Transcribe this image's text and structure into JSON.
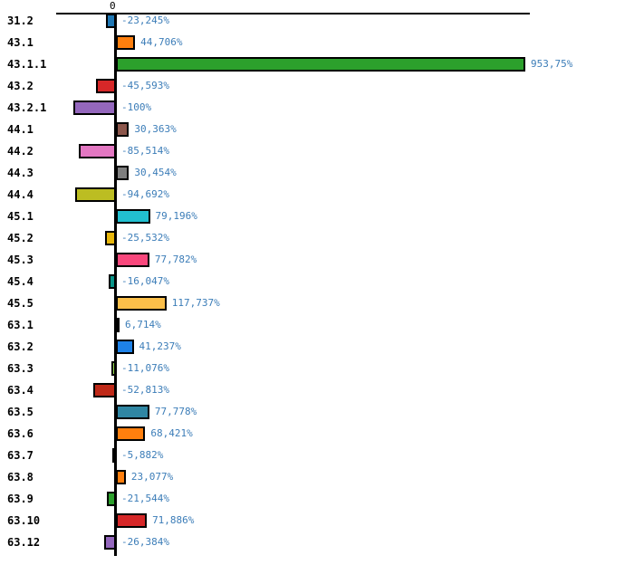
{
  "chart_data": {
    "type": "bar",
    "orientation": "horizontal",
    "title": "",
    "xlabel": "",
    "ylabel": "",
    "grid": false,
    "legend": false,
    "value_unit": "%",
    "x_axis": {
      "zero_label": "0",
      "approx_range_pct": [
        -139,
        964
      ]
    },
    "categories": [
      "31.2",
      "43.1",
      "43.1.1",
      "43.2",
      "43.2.1",
      "44.1",
      "44.2",
      "44.3",
      "44.4",
      "45.1",
      "45.2",
      "45.3",
      "45.4",
      "45.5",
      "63.1",
      "63.2",
      "63.3",
      "63.4",
      "63.5",
      "63.6",
      "63.7",
      "63.8",
      "63.9",
      "63.10",
      "63.12"
    ],
    "values": [
      -23.245,
      44.706,
      953.75,
      -45.593,
      -100,
      30.363,
      -85.514,
      30.454,
      -94.692,
      79.196,
      -25.532,
      77.782,
      -16.047,
      117.737,
      6.714,
      41.237,
      -11.076,
      -52.813,
      77.778,
      68.421,
      -5.882,
      23.077,
      -21.544,
      71.886,
      -26.384
    ],
    "value_labels": [
      "-23,245%",
      "44,706%",
      "953,75%",
      "-45,593%",
      "-100%",
      "30,363%",
      "-85,514%",
      "30,454%",
      "-94,692%",
      "79,196%",
      "-25,532%",
      "77,782%",
      "-16,047%",
      "117,737%",
      "6,714%",
      "41,237%",
      "-11,076%",
      "-52,813%",
      "77,778%",
      "68,421%",
      "-5,882%",
      "23,077%",
      "-21,544%",
      "71,886%",
      "-26,384%"
    ],
    "bar_colors": [
      "#1f77b4",
      "#ff7f0e",
      "#2ca02c",
      "#d62728",
      "#9467bd",
      "#8c564b",
      "#e377c2",
      "#7f7f7f",
      "#bcbd22",
      "#22c0d0",
      "#e8b70c",
      "#f9477c",
      "#099488",
      "#fbbf4a",
      "#9a4bab",
      "#1e82e8",
      "#9ae050",
      "#bf2918",
      "#2f86a3",
      "#ff7f0e",
      "#1f77b4",
      "#ff7f0e",
      "#2ca02c",
      "#d62728",
      "#9467bd"
    ],
    "bar_outline_color": "#000000",
    "axis_color": "#000000",
    "value_label_color": "#3c7db8",
    "category_label_color": "#000000",
    "background_color": "#ffffff"
  }
}
